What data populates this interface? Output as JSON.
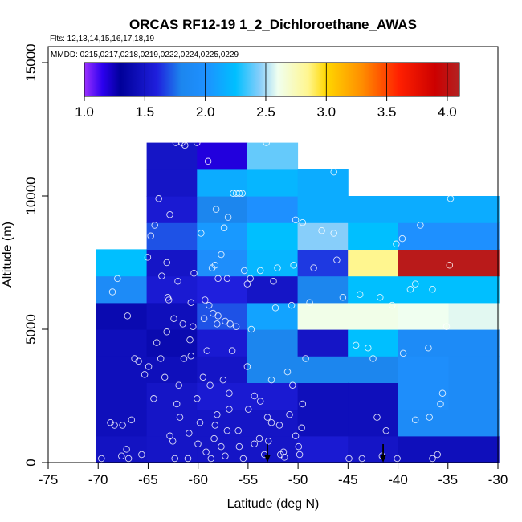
{
  "chart_data": {
    "type": "heatmap",
    "title": "ORCAS RF12-19 1_2_Dichloroethane_AWAS",
    "subtitle_flights": "Flts: 12,13,14,15,16,17,18,19",
    "subtitle_dates": "MMDD: 0215,0217,0218,0219,0222,0224,0225,0229",
    "xlabel": "Latitude (deg N)",
    "ylabel": "Altitude (m)",
    "xlim": [
      -75,
      -30
    ],
    "ylim": [
      0,
      15500
    ],
    "x_ticks": [
      -75,
      -70,
      -65,
      -60,
      -55,
      -50,
      -45,
      -40,
      -35,
      -30
    ],
    "y_ticks": [
      0,
      5000,
      10000,
      15000
    ],
    "colorbar": {
      "range": [
        1.0,
        4.1
      ],
      "ticks": [
        "1.0",
        "1.5",
        "2.0",
        "2.5",
        "3.0",
        "3.5",
        "4.0"
      ],
      "tick_values": [
        1.0,
        1.5,
        2.0,
        2.5,
        3.0,
        3.5,
        4.0
      ],
      "stops": [
        {
          "v": 1.0,
          "c": "#9b30ff"
        },
        {
          "v": 1.15,
          "c": "#2b00ee"
        },
        {
          "v": 1.3,
          "c": "#000099"
        },
        {
          "v": 1.6,
          "c": "#1f1fdd"
        },
        {
          "v": 1.8,
          "c": "#1c86ee"
        },
        {
          "v": 2.0,
          "c": "#1e90ff"
        },
        {
          "v": 2.25,
          "c": "#00bfff"
        },
        {
          "v": 2.45,
          "c": "#87cefa"
        },
        {
          "v": 2.6,
          "c": "#f0fff0"
        },
        {
          "v": 2.85,
          "c": "#fff68f"
        },
        {
          "v": 3.0,
          "c": "#ffd700"
        },
        {
          "v": 3.3,
          "c": "#ff8c00"
        },
        {
          "v": 3.6,
          "c": "#ff2000"
        },
        {
          "v": 3.9,
          "c": "#cc0000"
        },
        {
          "v": 4.1,
          "c": "#b22222"
        }
      ]
    },
    "cell_width_deg": 5,
    "cells": [
      {
        "lat": -70,
        "alt0": 0,
        "alt1": 1000,
        "v": 1.48
      },
      {
        "lat": -70,
        "alt0": 1000,
        "alt1": 2000,
        "v": 1.45
      },
      {
        "lat": -70,
        "alt0": 2000,
        "alt1": 3000,
        "v": 1.45
      },
      {
        "lat": -70,
        "alt0": 3000,
        "alt1": 4000,
        "v": 1.45
      },
      {
        "lat": -70,
        "alt0": 4000,
        "alt1": 5000,
        "v": 1.45
      },
      {
        "lat": -70,
        "alt0": 5000,
        "alt1": 6000,
        "v": 1.4
      },
      {
        "lat": -70,
        "alt0": 6000,
        "alt1": 7000,
        "v": 1.9
      },
      {
        "lat": -70,
        "alt0": 7000,
        "alt1": 8000,
        "v": 2.25
      },
      {
        "lat": -65,
        "alt0": 0,
        "alt1": 1000,
        "v": 1.5
      },
      {
        "lat": -65,
        "alt0": 1000,
        "alt1": 2000,
        "v": 1.5
      },
      {
        "lat": -65,
        "alt0": 2000,
        "alt1": 3000,
        "v": 1.5
      },
      {
        "lat": -65,
        "alt0": 3000,
        "alt1": 4000,
        "v": 1.45
      },
      {
        "lat": -65,
        "alt0": 4000,
        "alt1": 5000,
        "v": 1.4
      },
      {
        "lat": -65,
        "alt0": 5000,
        "alt1": 6000,
        "v": 1.45
      },
      {
        "lat": -65,
        "alt0": 6000,
        "alt1": 7000,
        "v": 1.55
      },
      {
        "lat": -65,
        "alt0": 7000,
        "alt1": 8000,
        "v": 1.5
      },
      {
        "lat": -65,
        "alt0": 8000,
        "alt1": 9000,
        "v": 1.7
      },
      {
        "lat": -65,
        "alt0": 9000,
        "alt1": 10000,
        "v": 1.55
      },
      {
        "lat": -65,
        "alt0": 10000,
        "alt1": 11000,
        "v": 1.5
      },
      {
        "lat": -65,
        "alt0": 11000,
        "alt1": 12000,
        "v": 1.5
      },
      {
        "lat": -60,
        "alt0": 0,
        "alt1": 1000,
        "v": 1.5
      },
      {
        "lat": -60,
        "alt0": 1000,
        "alt1": 2000,
        "v": 1.5
      },
      {
        "lat": -60,
        "alt0": 2000,
        "alt1": 3000,
        "v": 1.55
      },
      {
        "lat": -60,
        "alt0": 3000,
        "alt1": 4000,
        "v": 1.5
      },
      {
        "lat": -60,
        "alt0": 4000,
        "alt1": 5000,
        "v": 1.55
      },
      {
        "lat": -60,
        "alt0": 5000,
        "alt1": 6000,
        "v": 1.7
      },
      {
        "lat": -60,
        "alt0": 6000,
        "alt1": 7000,
        "v": 1.6
      },
      {
        "lat": -60,
        "alt0": 7000,
        "alt1": 8000,
        "v": 1.95
      },
      {
        "lat": -60,
        "alt0": 8000,
        "alt1": 9000,
        "v": 2.05
      },
      {
        "lat": -60,
        "alt0": 9000,
        "alt1": 10000,
        "v": 1.8
      },
      {
        "lat": -60,
        "alt0": 10000,
        "alt1": 11000,
        "v": 2.15
      },
      {
        "lat": -60,
        "alt0": 11000,
        "alt1": 12000,
        "v": 1.18
      },
      {
        "lat": -55,
        "alt0": 0,
        "alt1": 1000,
        "v": 1.5
      },
      {
        "lat": -55,
        "alt0": 1000,
        "alt1": 2000,
        "v": 1.5
      },
      {
        "lat": -55,
        "alt0": 2000,
        "alt1": 3000,
        "v": 1.55
      },
      {
        "lat": -55,
        "alt0": 3000,
        "alt1": 4000,
        "v": 1.8
      },
      {
        "lat": -55,
        "alt0": 4000,
        "alt1": 5000,
        "v": 1.8
      },
      {
        "lat": -55,
        "alt0": 5000,
        "alt1": 6000,
        "v": 2.1
      },
      {
        "lat": -55,
        "alt0": 6000,
        "alt1": 7000,
        "v": 1.5
      },
      {
        "lat": -55,
        "alt0": 7000,
        "alt1": 8000,
        "v": 2.2
      },
      {
        "lat": -55,
        "alt0": 8000,
        "alt1": 9000,
        "v": 2.25
      },
      {
        "lat": -55,
        "alt0": 9000,
        "alt1": 10000,
        "v": 2.0
      },
      {
        "lat": -55,
        "alt0": 10000,
        "alt1": 11000,
        "v": 2.2
      },
      {
        "lat": -55,
        "alt0": 11000,
        "alt1": 12000,
        "v": 2.4
      },
      {
        "lat": -50,
        "alt0": 0,
        "alt1": 1000,
        "v": 1.55
      },
      {
        "lat": -50,
        "alt0": 1000,
        "alt1": 2000,
        "v": 1.45
      },
      {
        "lat": -50,
        "alt0": 2000,
        "alt1": 3000,
        "v": 1.45
      },
      {
        "lat": -50,
        "alt0": 3000,
        "alt1": 4000,
        "v": 1.8
      },
      {
        "lat": -50,
        "alt0": 4000,
        "alt1": 5000,
        "v": 1.5
      },
      {
        "lat": -50,
        "alt0": 5000,
        "alt1": 6000,
        "v": 2.62
      },
      {
        "lat": -50,
        "alt0": 6000,
        "alt1": 7000,
        "v": 1.8
      },
      {
        "lat": -50,
        "alt0": 7000,
        "alt1": 8000,
        "v": 1.65
      },
      {
        "lat": -50,
        "alt0": 8000,
        "alt1": 9000,
        "v": 2.45
      },
      {
        "lat": -50,
        "alt0": 9000,
        "alt1": 10000,
        "v": 2.15
      },
      {
        "lat": -50,
        "alt0": 10000,
        "alt1": 11000,
        "v": 2.15
      },
      {
        "lat": -45,
        "alt0": 0,
        "alt1": 1000,
        "v": 1.5
      },
      {
        "lat": -45,
        "alt0": 1000,
        "alt1": 2000,
        "v": 1.45
      },
      {
        "lat": -45,
        "alt0": 2000,
        "alt1": 3000,
        "v": 1.45
      },
      {
        "lat": -45,
        "alt0": 3000,
        "alt1": 4000,
        "v": 1.8
      },
      {
        "lat": -45,
        "alt0": 4000,
        "alt1": 5000,
        "v": 2.25
      },
      {
        "lat": -45,
        "alt0": 5000,
        "alt1": 6000,
        "v": 2.62
      },
      {
        "lat": -45,
        "alt0": 6000,
        "alt1": 7000,
        "v": 2.25
      },
      {
        "lat": -45,
        "alt0": 7000,
        "alt1": 8000,
        "v": 2.85
      },
      {
        "lat": -45,
        "alt0": 8000,
        "alt1": 9000,
        "v": 2.25
      },
      {
        "lat": -45,
        "alt0": 9000,
        "alt1": 10000,
        "v": 2.15
      },
      {
        "lat": -40,
        "alt0": 0,
        "alt1": 1000,
        "v": 1.45
      },
      {
        "lat": -40,
        "alt0": 1000,
        "alt1": 2000,
        "v": 1.9
      },
      {
        "lat": -40,
        "alt0": 2000,
        "alt1": 3000,
        "v": 1.95
      },
      {
        "lat": -40,
        "alt0": 3000,
        "alt1": 4000,
        "v": 1.95
      },
      {
        "lat": -40,
        "alt0": 4000,
        "alt1": 5000,
        "v": 1.9
      },
      {
        "lat": -40,
        "alt0": 5000,
        "alt1": 6000,
        "v": 2.6
      },
      {
        "lat": -40,
        "alt0": 6000,
        "alt1": 7000,
        "v": 2.25
      },
      {
        "lat": -40,
        "alt0": 7000,
        "alt1": 8000,
        "v": 4.05
      },
      {
        "lat": -40,
        "alt0": 8000,
        "alt1": 9000,
        "v": 2.0
      },
      {
        "lat": -40,
        "alt0": 9000,
        "alt1": 10000,
        "v": 2.15
      },
      {
        "lat": -35,
        "alt0": 0,
        "alt1": 1000,
        "v": 1.45
      },
      {
        "lat": -35,
        "alt0": 1000,
        "alt1": 2000,
        "v": 1.9
      },
      {
        "lat": -35,
        "alt0": 2000,
        "alt1": 3000,
        "v": 1.9
      },
      {
        "lat": -35,
        "alt0": 3000,
        "alt1": 4000,
        "v": 1.9
      },
      {
        "lat": -35,
        "alt0": 4000,
        "alt1": 5000,
        "v": 1.9
      },
      {
        "lat": -35,
        "alt0": 5000,
        "alt1": 6000,
        "v": 2.58
      },
      {
        "lat": -35,
        "alt0": 6000,
        "alt1": 7000,
        "v": 2.25
      },
      {
        "lat": -35,
        "alt0": 7000,
        "alt1": 8000,
        "v": 4.05
      },
      {
        "lat": -35,
        "alt0": 8000,
        "alt1": 9000,
        "v": 2.0
      },
      {
        "lat": -35,
        "alt0": 9000,
        "alt1": 10000,
        "v": 2.15
      }
    ],
    "sample_points": [
      [
        -69.5,
        150
      ],
      [
        -68.6,
        1500
      ],
      [
        -68.2,
        1400
      ],
      [
        -67.5,
        250
      ],
      [
        -67.0,
        500
      ],
      [
        -66.8,
        150
      ],
      [
        -66.5,
        1600
      ],
      [
        -65.8,
        3800
      ],
      [
        -65.5,
        300
      ],
      [
        -64.8,
        3600
      ],
      [
        -64.3,
        2400
      ],
      [
        -63.6,
        3900
      ],
      [
        -63.0,
        4900
      ],
      [
        -62.7,
        1000
      ],
      [
        -62.4,
        800
      ],
      [
        -62.2,
        150
      ],
      [
        -62.0,
        2200
      ],
      [
        -61.7,
        1700
      ],
      [
        -61.3,
        3900
      ],
      [
        -60.9,
        150
      ],
      [
        -60.6,
        4000
      ],
      [
        -60.4,
        5100
      ],
      [
        -60.0,
        2400
      ],
      [
        -59.7,
        1500
      ],
      [
        -59.4,
        3200
      ],
      [
        -59.0,
        4200
      ],
      [
        -58.6,
        150
      ],
      [
        -58.3,
        900
      ],
      [
        -58.0,
        1800
      ],
      [
        -57.6,
        600
      ],
      [
        -57.2,
        250
      ],
      [
        -57.0,
        1200
      ],
      [
        -56.8,
        2600
      ],
      [
        -56.5,
        4200
      ],
      [
        -56.1,
        5100
      ],
      [
        -55.8,
        600
      ],
      [
        -55.4,
        150
      ],
      [
        -55.0,
        3600
      ],
      [
        -54.6,
        5000
      ],
      [
        -54.3,
        2500
      ],
      [
        -53.8,
        900
      ],
      [
        -53.3,
        300
      ],
      [
        -53.0,
        1700
      ],
      [
        -52.6,
        3100
      ],
      [
        -52.2,
        5800
      ],
      [
        -51.8,
        1400
      ],
      [
        -51.4,
        400
      ],
      [
        -51.0,
        3400
      ],
      [
        -50.6,
        5900
      ],
      [
        -50.2,
        1000
      ],
      [
        -49.8,
        300
      ],
      [
        -49.5,
        2200
      ],
      [
        -49.2,
        3900
      ],
      [
        -48.8,
        6000
      ],
      [
        -48.4,
        7300
      ],
      [
        -47.6,
        8700
      ],
      [
        -46.4,
        10900
      ],
      [
        -45.5,
        6200
      ],
      [
        -44.2,
        4400
      ],
      [
        -43.8,
        6300
      ],
      [
        -42.5,
        3900
      ],
      [
        -42.1,
        1700
      ],
      [
        -41.6,
        250
      ],
      [
        -41.2,
        1200
      ],
      [
        -40.6,
        5900
      ],
      [
        -40.2,
        8200
      ],
      [
        -39.5,
        4100
      ],
      [
        -38.8,
        6500
      ],
      [
        -38.3,
        6700
      ],
      [
        -37.8,
        8900
      ],
      [
        -37.0,
        4300
      ],
      [
        -36.6,
        150
      ],
      [
        -36.1,
        300
      ],
      [
        -35.6,
        2600
      ],
      [
        -35.2,
        5100
      ],
      [
        -34.9,
        7400
      ],
      [
        -34.8,
        9900
      ],
      [
        -64.6,
        8500
      ],
      [
        -64.2,
        8900
      ],
      [
        -63.5,
        7000
      ],
      [
        -63.0,
        7500
      ],
      [
        -62.7,
        9300
      ],
      [
        -62.1,
        12000
      ],
      [
        -61.5,
        12000
      ],
      [
        -61.2,
        11900
      ],
      [
        -60.0,
        12000
      ],
      [
        -58.9,
        11300
      ],
      [
        -58.5,
        7300
      ],
      [
        -58.2,
        7400
      ],
      [
        -57.9,
        6900
      ],
      [
        -57.6,
        7800
      ],
      [
        -57.3,
        8800
      ],
      [
        -56.9,
        9200
      ],
      [
        -56.4,
        10100
      ],
      [
        -56.1,
        10100
      ],
      [
        -55.8,
        10100
      ],
      [
        -55.5,
        10100
      ],
      [
        -55.3,
        7200
      ],
      [
        -55.0,
        6700
      ],
      [
        -54.7,
        6900
      ],
      [
        -53.7,
        7200
      ],
      [
        -53.1,
        12000
      ],
      [
        -52.4,
        6800
      ],
      [
        -52.0,
        7300
      ],
      [
        -50.4,
        7400
      ],
      [
        -50.2,
        9100
      ],
      [
        -49.5,
        9000
      ],
      [
        -46.1,
        7600
      ],
      [
        -46.4,
        8600
      ],
      [
        -62.3,
        5400
      ],
      [
        -61.4,
        5200
      ],
      [
        -60.6,
        6000
      ],
      [
        -59.2,
        6100
      ],
      [
        -58.8,
        5900
      ],
      [
        -58.4,
        5600
      ],
      [
        -57.9,
        5500
      ],
      [
        -57.2,
        5300
      ],
      [
        -56.7,
        5200
      ],
      [
        -63.2,
        3200
      ],
      [
        -61.8,
        2900
      ],
      [
        -60.8,
        1100
      ],
      [
        -59.9,
        700
      ],
      [
        -59.1,
        400
      ],
      [
        -58.7,
        2900
      ],
      [
        -58.2,
        1400
      ],
      [
        -57.4,
        3100
      ],
      [
        -56.8,
        2000
      ],
      [
        -55.9,
        1200
      ],
      [
        -54.9,
        2000
      ],
      [
        -54.3,
        700
      ],
      [
        -53.7,
        2300
      ],
      [
        -52.9,
        800
      ],
      [
        -52.6,
        1500
      ],
      [
        -51.7,
        300
      ],
      [
        -51.3,
        200
      ],
      [
        -50.8,
        1800
      ],
      [
        -50.5,
        2900
      ],
      [
        -49.9,
        600
      ],
      [
        -49.6,
        1300
      ],
      [
        -66.9,
        5500
      ],
      [
        -65.2,
        3300
      ],
      [
        -64.0,
        4500
      ],
      [
        -62.9,
        6200
      ],
      [
        -61.9,
        6800
      ],
      [
        -60.3,
        7100
      ],
      [
        -59.6,
        8600
      ],
      [
        -58.1,
        9500
      ],
      [
        -57.0,
        6900
      ],
      [
        -60.7,
        4600
      ],
      [
        -59.3,
        5400
      ],
      [
        -58.0,
        5200
      ],
      [
        -62.8,
        6100
      ],
      [
        -67.4,
        1400
      ],
      [
        -66.2,
        3900
      ],
      [
        -68.4,
        6400
      ],
      [
        -67.9,
        6900
      ],
      [
        -64.9,
        7700
      ],
      [
        -63.8,
        9900
      ],
      [
        -44.9,
        150
      ],
      [
        -43.6,
        150
      ],
      [
        -40.1,
        150
      ],
      [
        -38.3,
        1600
      ],
      [
        -41.8,
        6200
      ],
      [
        -39.6,
        8400
      ],
      [
        -36.6,
        6500
      ],
      [
        -43.0,
        4300
      ],
      [
        -36.9,
        1700
      ],
      [
        -35.8,
        2200
      ]
    ],
    "arrows_at_lat": [
      -53,
      -41.5
    ]
  }
}
